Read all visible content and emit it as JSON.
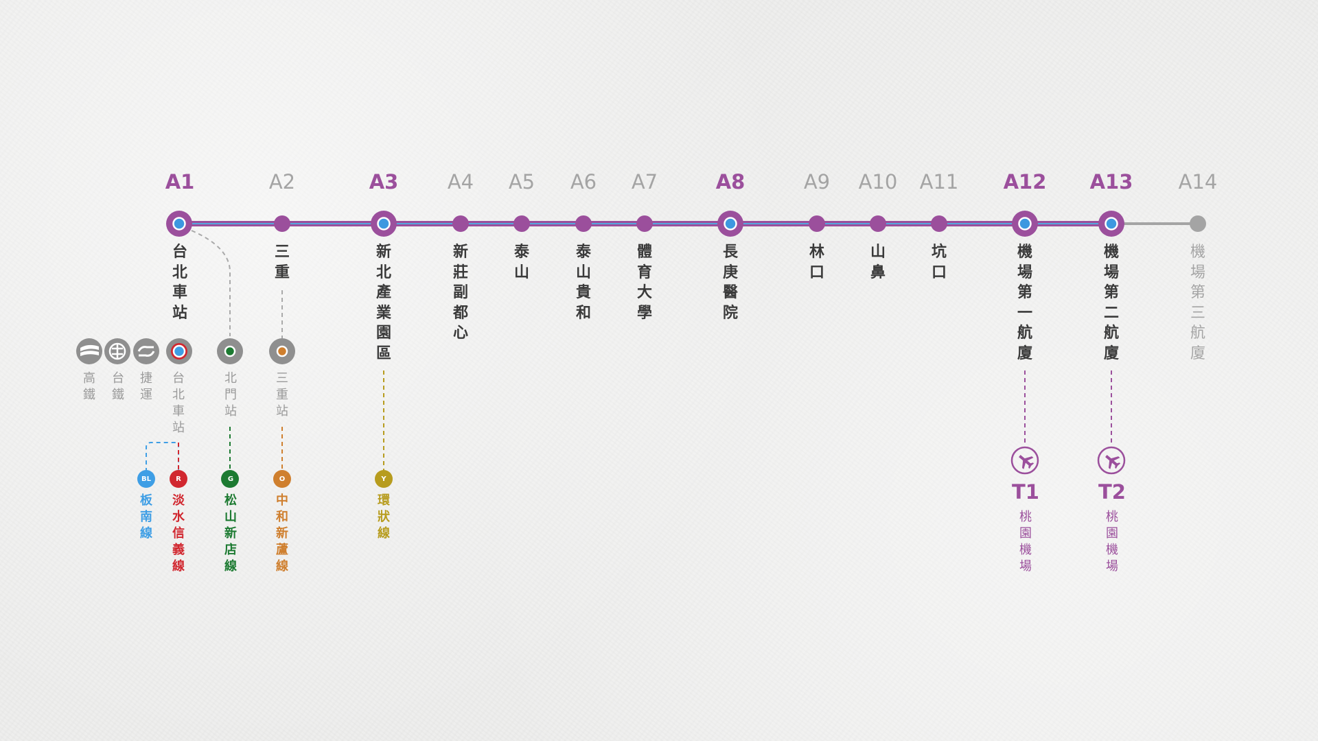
{
  "colors": {
    "line_purple": "#9b4f9c",
    "line_blue": "#55a7dd",
    "dot_blue": "#3d98e0",
    "dim_gray": "#a4a4a4",
    "station_text": "#3a3a3a",
    "transfer_gray": "#8f8f8f",
    "blue_line": "#3e9ee5",
    "red_line": "#d1272f",
    "green_line": "#1c7a31",
    "orange_line": "#cf7f2e",
    "yellow_line": "#b79c1e"
  },
  "stations": [
    {
      "code": "A1",
      "name": "台北車站",
      "status": "major"
    },
    {
      "code": "A2",
      "name": "三重",
      "status": "regular"
    },
    {
      "code": "A3",
      "name": "新北產業園區",
      "status": "major"
    },
    {
      "code": "A4",
      "name": "新莊副都心",
      "status": "regular"
    },
    {
      "code": "A5",
      "name": "泰山",
      "status": "regular"
    },
    {
      "code": "A6",
      "name": "泰山貴和",
      "status": "regular"
    },
    {
      "code": "A7",
      "name": "體育大學",
      "status": "regular"
    },
    {
      "code": "A8",
      "name": "長庚醫院",
      "status": "major"
    },
    {
      "code": "A9",
      "name": "林口",
      "status": "regular"
    },
    {
      "code": "A10",
      "name": "山鼻",
      "status": "regular"
    },
    {
      "code": "A11",
      "name": "坑口",
      "status": "regular"
    },
    {
      "code": "A12",
      "name": "機場第一航廈",
      "status": "major"
    },
    {
      "code": "A13",
      "name": "機場第二航廈",
      "status": "major"
    },
    {
      "code": "A14",
      "name": "機場第三航廈",
      "status": "future"
    }
  ],
  "rail_transfers": [
    {
      "label": "高鐵",
      "icon": "high-speed-rail-icon"
    },
    {
      "label": "台鐵",
      "icon": "taiwan-railway-icon"
    },
    {
      "label": "捷運",
      "icon": "metro-icon"
    }
  ],
  "transfer_stations": [
    {
      "name": "台北車站",
      "icon": "mrt-transfer-icon"
    },
    {
      "name": "北門站",
      "icon": "green-line-station-icon"
    },
    {
      "name": "三重站",
      "icon": "orange-line-station-icon"
    }
  ],
  "connecting_lines": [
    {
      "badge": "BL",
      "name": "板南線"
    },
    {
      "badge": "R",
      "name": "淡水信義線"
    },
    {
      "badge": "G",
      "name": "松山新店線"
    },
    {
      "badge": "O",
      "name": "中和新蘆線"
    },
    {
      "badge": "Y",
      "name": "環狀線"
    }
  ],
  "terminals": [
    {
      "code": "T1",
      "name": "桃園機場",
      "icon": "airplane-icon"
    },
    {
      "code": "T2",
      "name": "桃園機場",
      "icon": "airplane-icon"
    }
  ]
}
